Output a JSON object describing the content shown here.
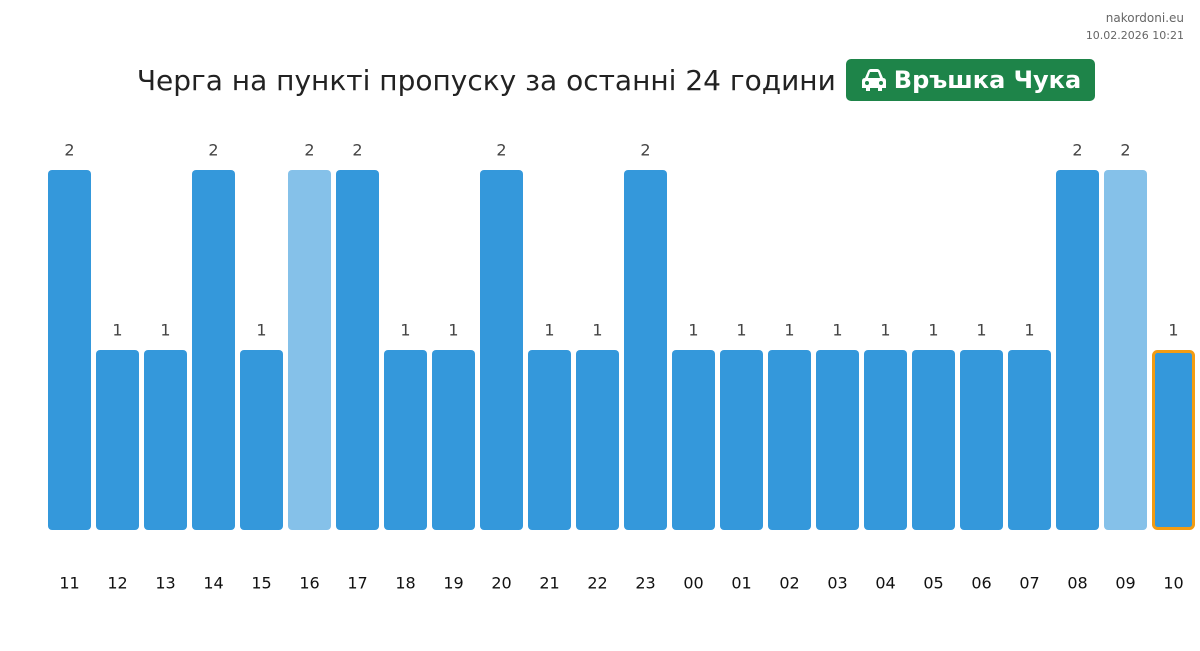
{
  "chart_data": {
    "type": "bar",
    "source": "nakordoni.eu",
    "timestamp": "10.02.2026 10:21",
    "title": "Черга на пункті пропуску за останні 24 години",
    "badge": "Връшка Чука",
    "badge_color": "#1e8449",
    "categories": [
      "11",
      "12",
      "13",
      "14",
      "15",
      "16",
      "17",
      "18",
      "19",
      "20",
      "21",
      "22",
      "23",
      "00",
      "01",
      "02",
      "03",
      "04",
      "05",
      "06",
      "07",
      "08",
      "09",
      "10"
    ],
    "values": [
      2,
      1,
      1,
      2,
      1,
      2,
      2,
      1,
      1,
      2,
      1,
      1,
      2,
      1,
      1,
      1,
      1,
      1,
      1,
      1,
      1,
      2,
      2,
      1
    ],
    "colors": [
      "#3498db",
      "#3498db",
      "#3498db",
      "#3498db",
      "#3498db",
      "#85c1e9",
      "#3498db",
      "#3498db",
      "#3498db",
      "#3498db",
      "#3498db",
      "#3498db",
      "#3498db",
      "#3498db",
      "#3498db",
      "#3498db",
      "#3498db",
      "#3498db",
      "#3498db",
      "#3498db",
      "#3498db",
      "#3498db",
      "#85c1e9",
      "#3498db"
    ],
    "edgecolors": [
      "none",
      "none",
      "none",
      "none",
      "none",
      "none",
      "none",
      "none",
      "none",
      "none",
      "none",
      "none",
      "none",
      "none",
      "none",
      "none",
      "none",
      "none",
      "none",
      "none",
      "none",
      "none",
      "none",
      "#f39c12"
    ],
    "ylim": [
      0,
      2
    ]
  }
}
